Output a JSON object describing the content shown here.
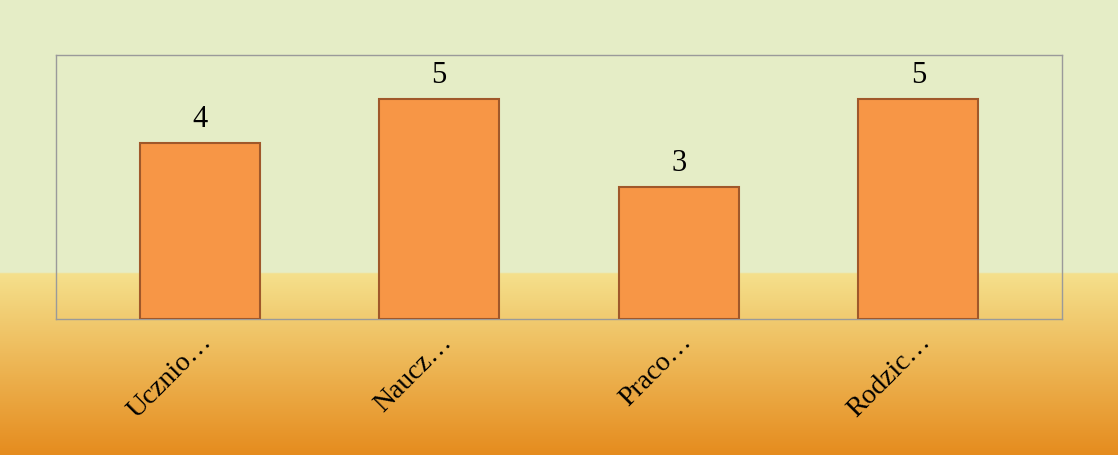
{
  "chart_data": {
    "type": "bar",
    "categories": [
      "Ucznio…",
      "Naucz…",
      "Praco…",
      "Rodzic…"
    ],
    "values": [
      4,
      5,
      3,
      5
    ],
    "color": "#f79646",
    "ylim": [
      0,
      6
    ],
    "data_labels": true,
    "tick_labels": "x",
    "grid": false
  }
}
